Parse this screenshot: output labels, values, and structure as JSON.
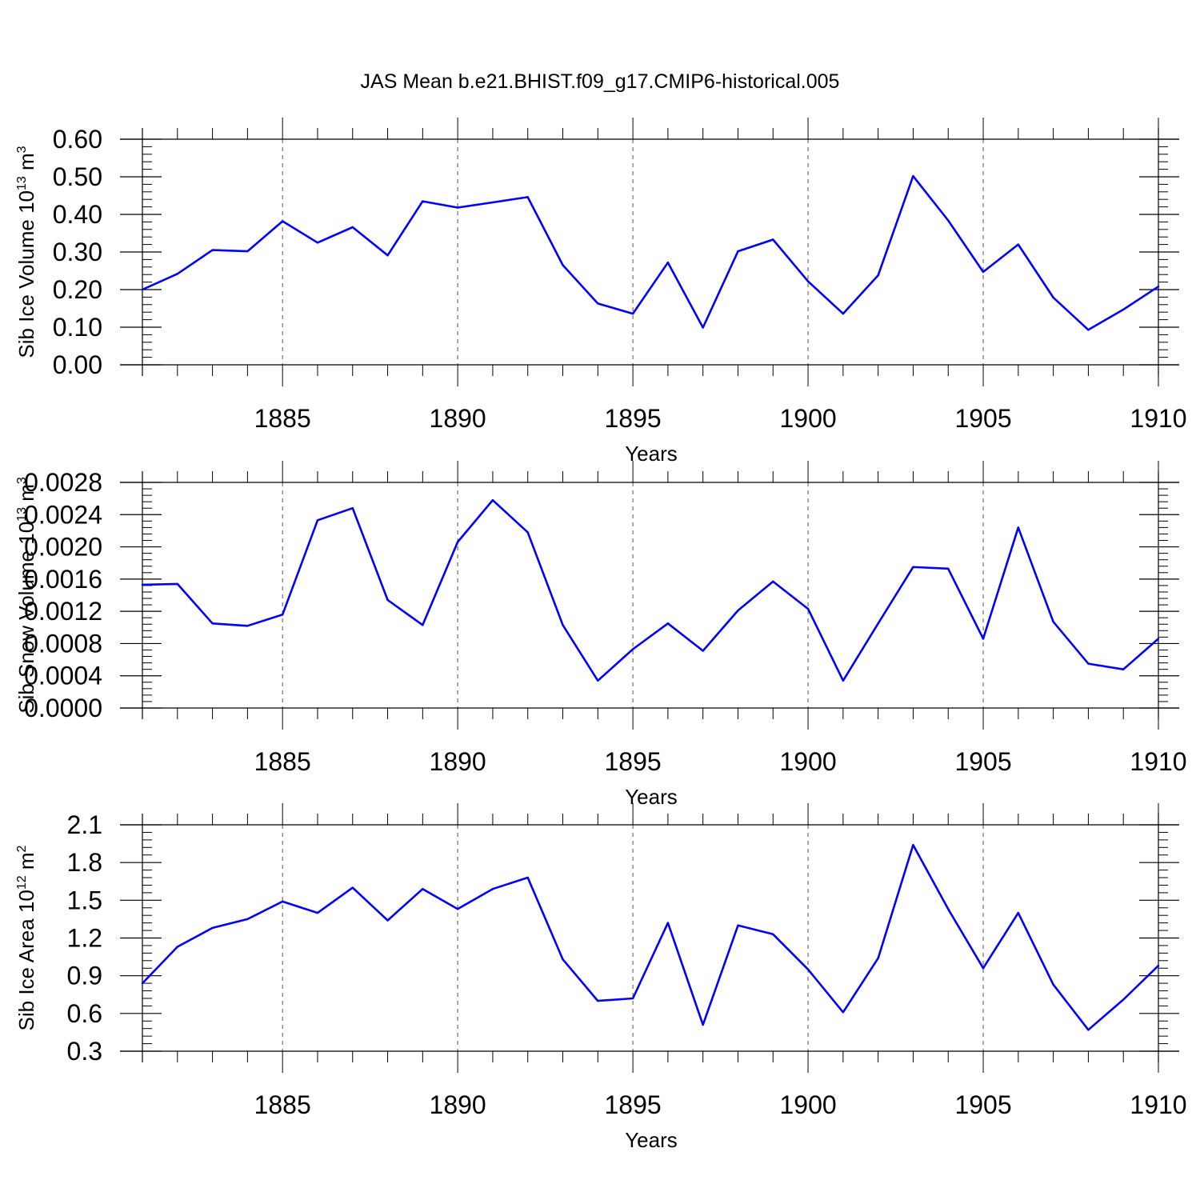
{
  "title": "JAS Mean b.e21.BHIST.f09_g17.CMIP6-historical.005",
  "colors": {
    "line": "#0000ff",
    "axis": "#000000",
    "grid": "#555555"
  },
  "chart_data": [
    {
      "type": "line",
      "x": [
        1881,
        1882,
        1883,
        1884,
        1885,
        1886,
        1887,
        1888,
        1889,
        1890,
        1891,
        1892,
        1893,
        1894,
        1895,
        1896,
        1897,
        1898,
        1899,
        1900,
        1901,
        1902,
        1903,
        1904,
        1905,
        1906,
        1907,
        1908,
        1909,
        1910
      ],
      "values": [
        0.2,
        0.242,
        0.305,
        0.302,
        0.382,
        0.325,
        0.366,
        0.291,
        0.435,
        0.418,
        0.432,
        0.446,
        0.265,
        0.163,
        0.136,
        0.272,
        0.099,
        0.302,
        0.333,
        0.222,
        0.136,
        0.238,
        0.502,
        0.384,
        0.247,
        0.32,
        0.179,
        0.093,
        0.147,
        0.208
      ],
      "xlabel": "Years",
      "ylabel": {
        "main": "Sib Ice Volume 10",
        "exp": "13",
        "unit": " m",
        "unit_exp": "3"
      },
      "xlim": [
        1881,
        1910
      ],
      "ylim": [
        0,
        0.6
      ],
      "yticks": [
        "0.00",
        "0.10",
        "0.20",
        "0.30",
        "0.40",
        "0.50",
        "0.60"
      ],
      "ytick_values": [
        0,
        0.1,
        0.2,
        0.3,
        0.4,
        0.5,
        0.6
      ],
      "xticks": [
        "1885",
        "1890",
        "1895",
        "1900",
        "1905",
        "1910"
      ],
      "xtick_values": [
        1885,
        1890,
        1895,
        1900,
        1905,
        1910
      ],
      "grid": "vertical dashed"
    },
    {
      "type": "line",
      "x": [
        1881,
        1882,
        1883,
        1884,
        1885,
        1886,
        1887,
        1888,
        1889,
        1890,
        1891,
        1892,
        1893,
        1894,
        1895,
        1896,
        1897,
        1898,
        1899,
        1900,
        1901,
        1902,
        1903,
        1904,
        1905,
        1906,
        1907,
        1908,
        1909,
        1910
      ],
      "values": [
        0.00153,
        0.00154,
        0.00105,
        0.00102,
        0.00116,
        0.00233,
        0.00248,
        0.00134,
        0.00103,
        0.00206,
        0.00258,
        0.00218,
        0.00103,
        0.00034,
        0.00073,
        0.00105,
        0.00071,
        0.00121,
        0.00157,
        0.00123,
        0.00034,
        0.00105,
        0.00175,
        0.00173,
        0.00086,
        0.00224,
        0.00107,
        0.00055,
        0.00048,
        0.00086
      ],
      "xlabel": "Years",
      "ylabel": {
        "main": "Sib Snow Volume 10",
        "exp": "13",
        "unit": " m",
        "unit_exp": "3"
      },
      "xlim": [
        1881,
        1910
      ],
      "ylim": [
        0,
        0.0028
      ],
      "yticks": [
        "0.0000",
        "0.0004",
        "0.0008",
        "0.0012",
        "0.0016",
        "0.0020",
        "0.0024",
        "0.0028"
      ],
      "ytick_values": [
        0,
        0.0004,
        0.0008,
        0.0012,
        0.0016,
        0.002,
        0.0024,
        0.0028
      ],
      "xticks": [
        "1885",
        "1890",
        "1895",
        "1900",
        "1905",
        "1910"
      ],
      "xtick_values": [
        1885,
        1890,
        1895,
        1900,
        1905,
        1910
      ],
      "grid": "vertical dashed"
    },
    {
      "type": "line",
      "x": [
        1881,
        1882,
        1883,
        1884,
        1885,
        1886,
        1887,
        1888,
        1889,
        1890,
        1891,
        1892,
        1893,
        1894,
        1895,
        1896,
        1897,
        1898,
        1899,
        1900,
        1901,
        1902,
        1903,
        1904,
        1905,
        1906,
        1907,
        1908,
        1909,
        1910
      ],
      "values": [
        0.84,
        1.13,
        1.28,
        1.35,
        1.49,
        1.4,
        1.6,
        1.34,
        1.59,
        1.43,
        1.59,
        1.68,
        1.03,
        0.7,
        0.72,
        1.32,
        0.51,
        1.3,
        1.23,
        0.95,
        0.61,
        1.04,
        1.94,
        1.43,
        0.96,
        1.4,
        0.83,
        0.47,
        0.71,
        0.98
      ],
      "xlabel": "Years",
      "ylabel": {
        "main": "Sib Ice Area 10",
        "exp": "12",
        "unit": " m",
        "unit_exp": "2"
      },
      "xlim": [
        1881,
        1910
      ],
      "ylim": [
        0.3,
        2.1
      ],
      "yticks": [
        "0.3",
        "0.6",
        "0.9",
        "1.2",
        "1.5",
        "1.8",
        "2.1"
      ],
      "ytick_values": [
        0.3,
        0.6,
        0.9,
        1.2,
        1.5,
        1.8,
        2.1
      ],
      "xticks": [
        "1885",
        "1890",
        "1895",
        "1900",
        "1905",
        "1910"
      ],
      "xtick_values": [
        1885,
        1890,
        1895,
        1900,
        1905,
        1910
      ],
      "grid": "vertical dashed"
    }
  ]
}
